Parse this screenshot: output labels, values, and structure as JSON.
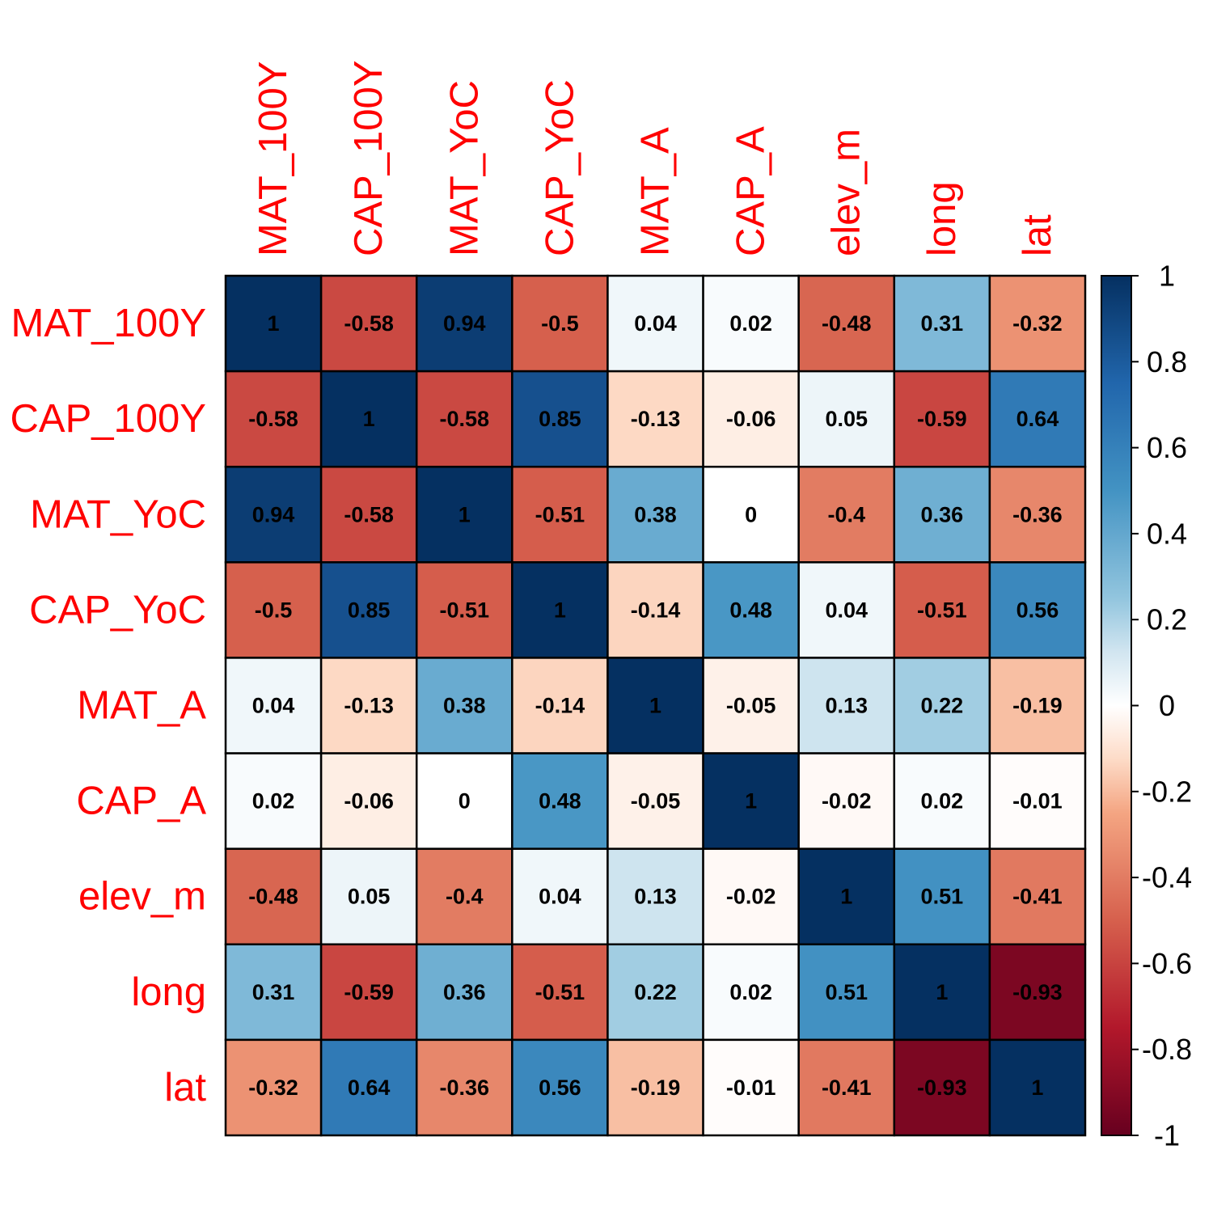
{
  "chart_data": {
    "type": "heatmap",
    "title": "",
    "xlabel": "",
    "ylabel": "",
    "variables": [
      "MAT_100Y",
      "CAP_100Y",
      "MAT_YoC",
      "CAP_YoC",
      "MAT_A",
      "CAP_A",
      "elev_m",
      "long",
      "lat"
    ],
    "values": [
      [
        1,
        -0.58,
        0.94,
        -0.5,
        0.04,
        0.02,
        -0.48,
        0.31,
        -0.32
      ],
      [
        -0.58,
        1,
        -0.58,
        0.85,
        -0.13,
        -0.06,
        0.05,
        -0.59,
        0.64
      ],
      [
        0.94,
        -0.58,
        1,
        -0.51,
        0.38,
        0,
        -0.4,
        0.36,
        -0.36
      ],
      [
        -0.5,
        0.85,
        -0.51,
        1,
        -0.14,
        0.48,
        0.04,
        -0.51,
        0.56
      ],
      [
        0.04,
        -0.13,
        0.38,
        -0.14,
        1,
        -0.05,
        0.13,
        0.22,
        -0.19
      ],
      [
        0.02,
        -0.06,
        0,
        0.48,
        -0.05,
        1,
        -0.02,
        0.02,
        -0.01
      ],
      [
        -0.48,
        0.05,
        -0.4,
        0.04,
        0.13,
        -0.02,
        1,
        0.51,
        -0.41
      ],
      [
        0.31,
        -0.59,
        0.36,
        -0.51,
        0.22,
        0.02,
        0.51,
        1,
        -0.93
      ],
      [
        -0.32,
        0.64,
        -0.36,
        0.56,
        -0.19,
        -0.01,
        -0.41,
        -0.93,
        1
      ]
    ],
    "value_labels": [
      [
        "1",
        "-0.58",
        "0.94",
        "-0.5",
        "0.04",
        "0.02",
        "-0.48",
        "0.31",
        "-0.32"
      ],
      [
        "-0.58",
        "1",
        "-0.58",
        "0.85",
        "-0.13",
        "-0.06",
        "0.05",
        "-0.59",
        "0.64"
      ],
      [
        "0.94",
        "-0.58",
        "1",
        "-0.51",
        "0.38",
        "0",
        "-0.4",
        "0.36",
        "-0.36"
      ],
      [
        "-0.5",
        "0.85",
        "-0.51",
        "1",
        "-0.14",
        "0.48",
        "0.04",
        "-0.51",
        "0.56"
      ],
      [
        "0.04",
        "-0.13",
        "0.38",
        "-0.14",
        "1",
        "-0.05",
        "0.13",
        "0.22",
        "-0.19"
      ],
      [
        "0.02",
        "-0.06",
        "0",
        "0.48",
        "-0.05",
        "1",
        "-0.02",
        "0.02",
        "-0.01"
      ],
      [
        "-0.48",
        "0.05",
        "-0.4",
        "0.04",
        "0.13",
        "-0.02",
        "1",
        "0.51",
        "-0.41"
      ],
      [
        "0.31",
        "-0.59",
        "0.36",
        "-0.51",
        "0.22",
        "0.02",
        "0.51",
        "1",
        "-0.93"
      ],
      [
        "-0.32",
        "0.64",
        "-0.36",
        "0.56",
        "-0.19",
        "-0.01",
        "-0.41",
        "-0.93",
        "1"
      ]
    ],
    "color_scale": {
      "range": [
        -1,
        1
      ],
      "stops": [
        {
          "value": -1,
          "color": "#67001F"
        },
        {
          "value": -0.75,
          "color": "#B2182B"
        },
        {
          "value": -0.5,
          "color": "#D6604D"
        },
        {
          "value": -0.25,
          "color": "#F4A582"
        },
        {
          "value": -0.125,
          "color": "#FDDBC7"
        },
        {
          "value": 0,
          "color": "#FFFFFF"
        },
        {
          "value": 0.125,
          "color": "#D1E5F0"
        },
        {
          "value": 0.25,
          "color": "#92C5DE"
        },
        {
          "value": 0.5,
          "color": "#4393C3"
        },
        {
          "value": 0.75,
          "color": "#2166AC"
        },
        {
          "value": 1,
          "color": "#053061"
        }
      ]
    },
    "legend": {
      "placement": "right",
      "tick_labels": [
        "1",
        "0.8",
        "0.6",
        "0.4",
        "0.2",
        "0",
        "-0.2",
        "-0.4",
        "-0.6",
        "-0.8",
        "-1"
      ],
      "tick_values": [
        1,
        0.8,
        0.6,
        0.4,
        0.2,
        0,
        -0.2,
        -0.4,
        -0.6,
        -0.8,
        -1
      ]
    },
    "label_color": "#FF0000",
    "cell_text_color": "#000000",
    "grid": true
  }
}
